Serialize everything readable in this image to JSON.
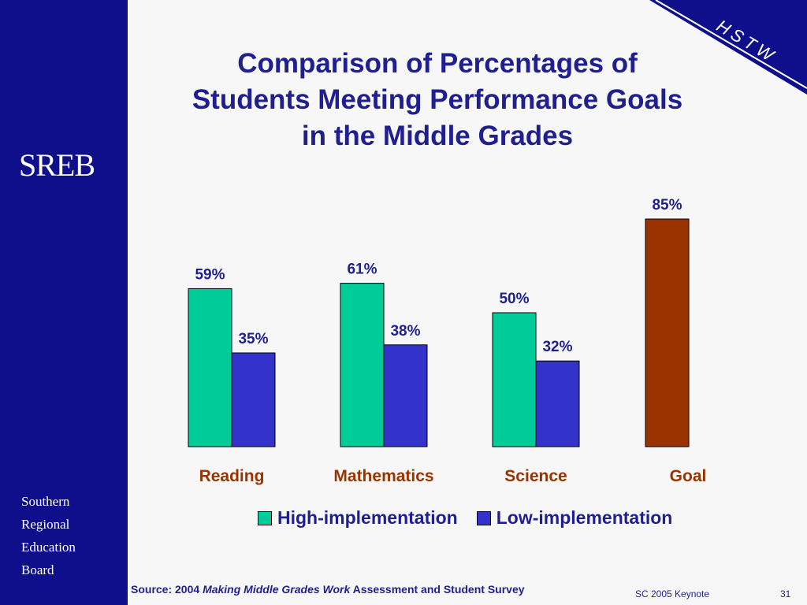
{
  "slide": {
    "logo": "SREB",
    "org_lines": [
      "Southern",
      "Regional",
      "Education",
      "Board"
    ],
    "corner_label": "HSTW",
    "title_lines": [
      "Comparison of Percentages of",
      "Students Meeting Performance Goals",
      "in the Middle Grades"
    ],
    "source_prefix": "Source: 2004 ",
    "source_italic": "Making Middle Grades Work",
    "source_suffix": " Assessment and Student Survey",
    "footer_note": "SC 2005 Keynote",
    "page_number": "31"
  },
  "colors": {
    "sidebar": "#0f0f8c",
    "text_blue": "#1f1f8f",
    "category_label": "#993300",
    "high": "#00cc99",
    "low": "#3333cc",
    "goal": "#993300"
  },
  "chart_data": {
    "type": "bar",
    "title": "Comparison of Percentages of Students Meeting Performance Goals in the Middle Grades",
    "categories": [
      "Reading",
      "Mathematics",
      "Science",
      "Goal"
    ],
    "series": [
      {
        "name": "High-implementation",
        "values": [
          59,
          61,
          50,
          null
        ]
      },
      {
        "name": "Low-implementation",
        "values": [
          35,
          38,
          32,
          null
        ]
      }
    ],
    "goal_value": 85,
    "value_suffix": "%",
    "ylim": [
      0,
      100
    ],
    "grid": false,
    "legend_position": "bottom"
  }
}
